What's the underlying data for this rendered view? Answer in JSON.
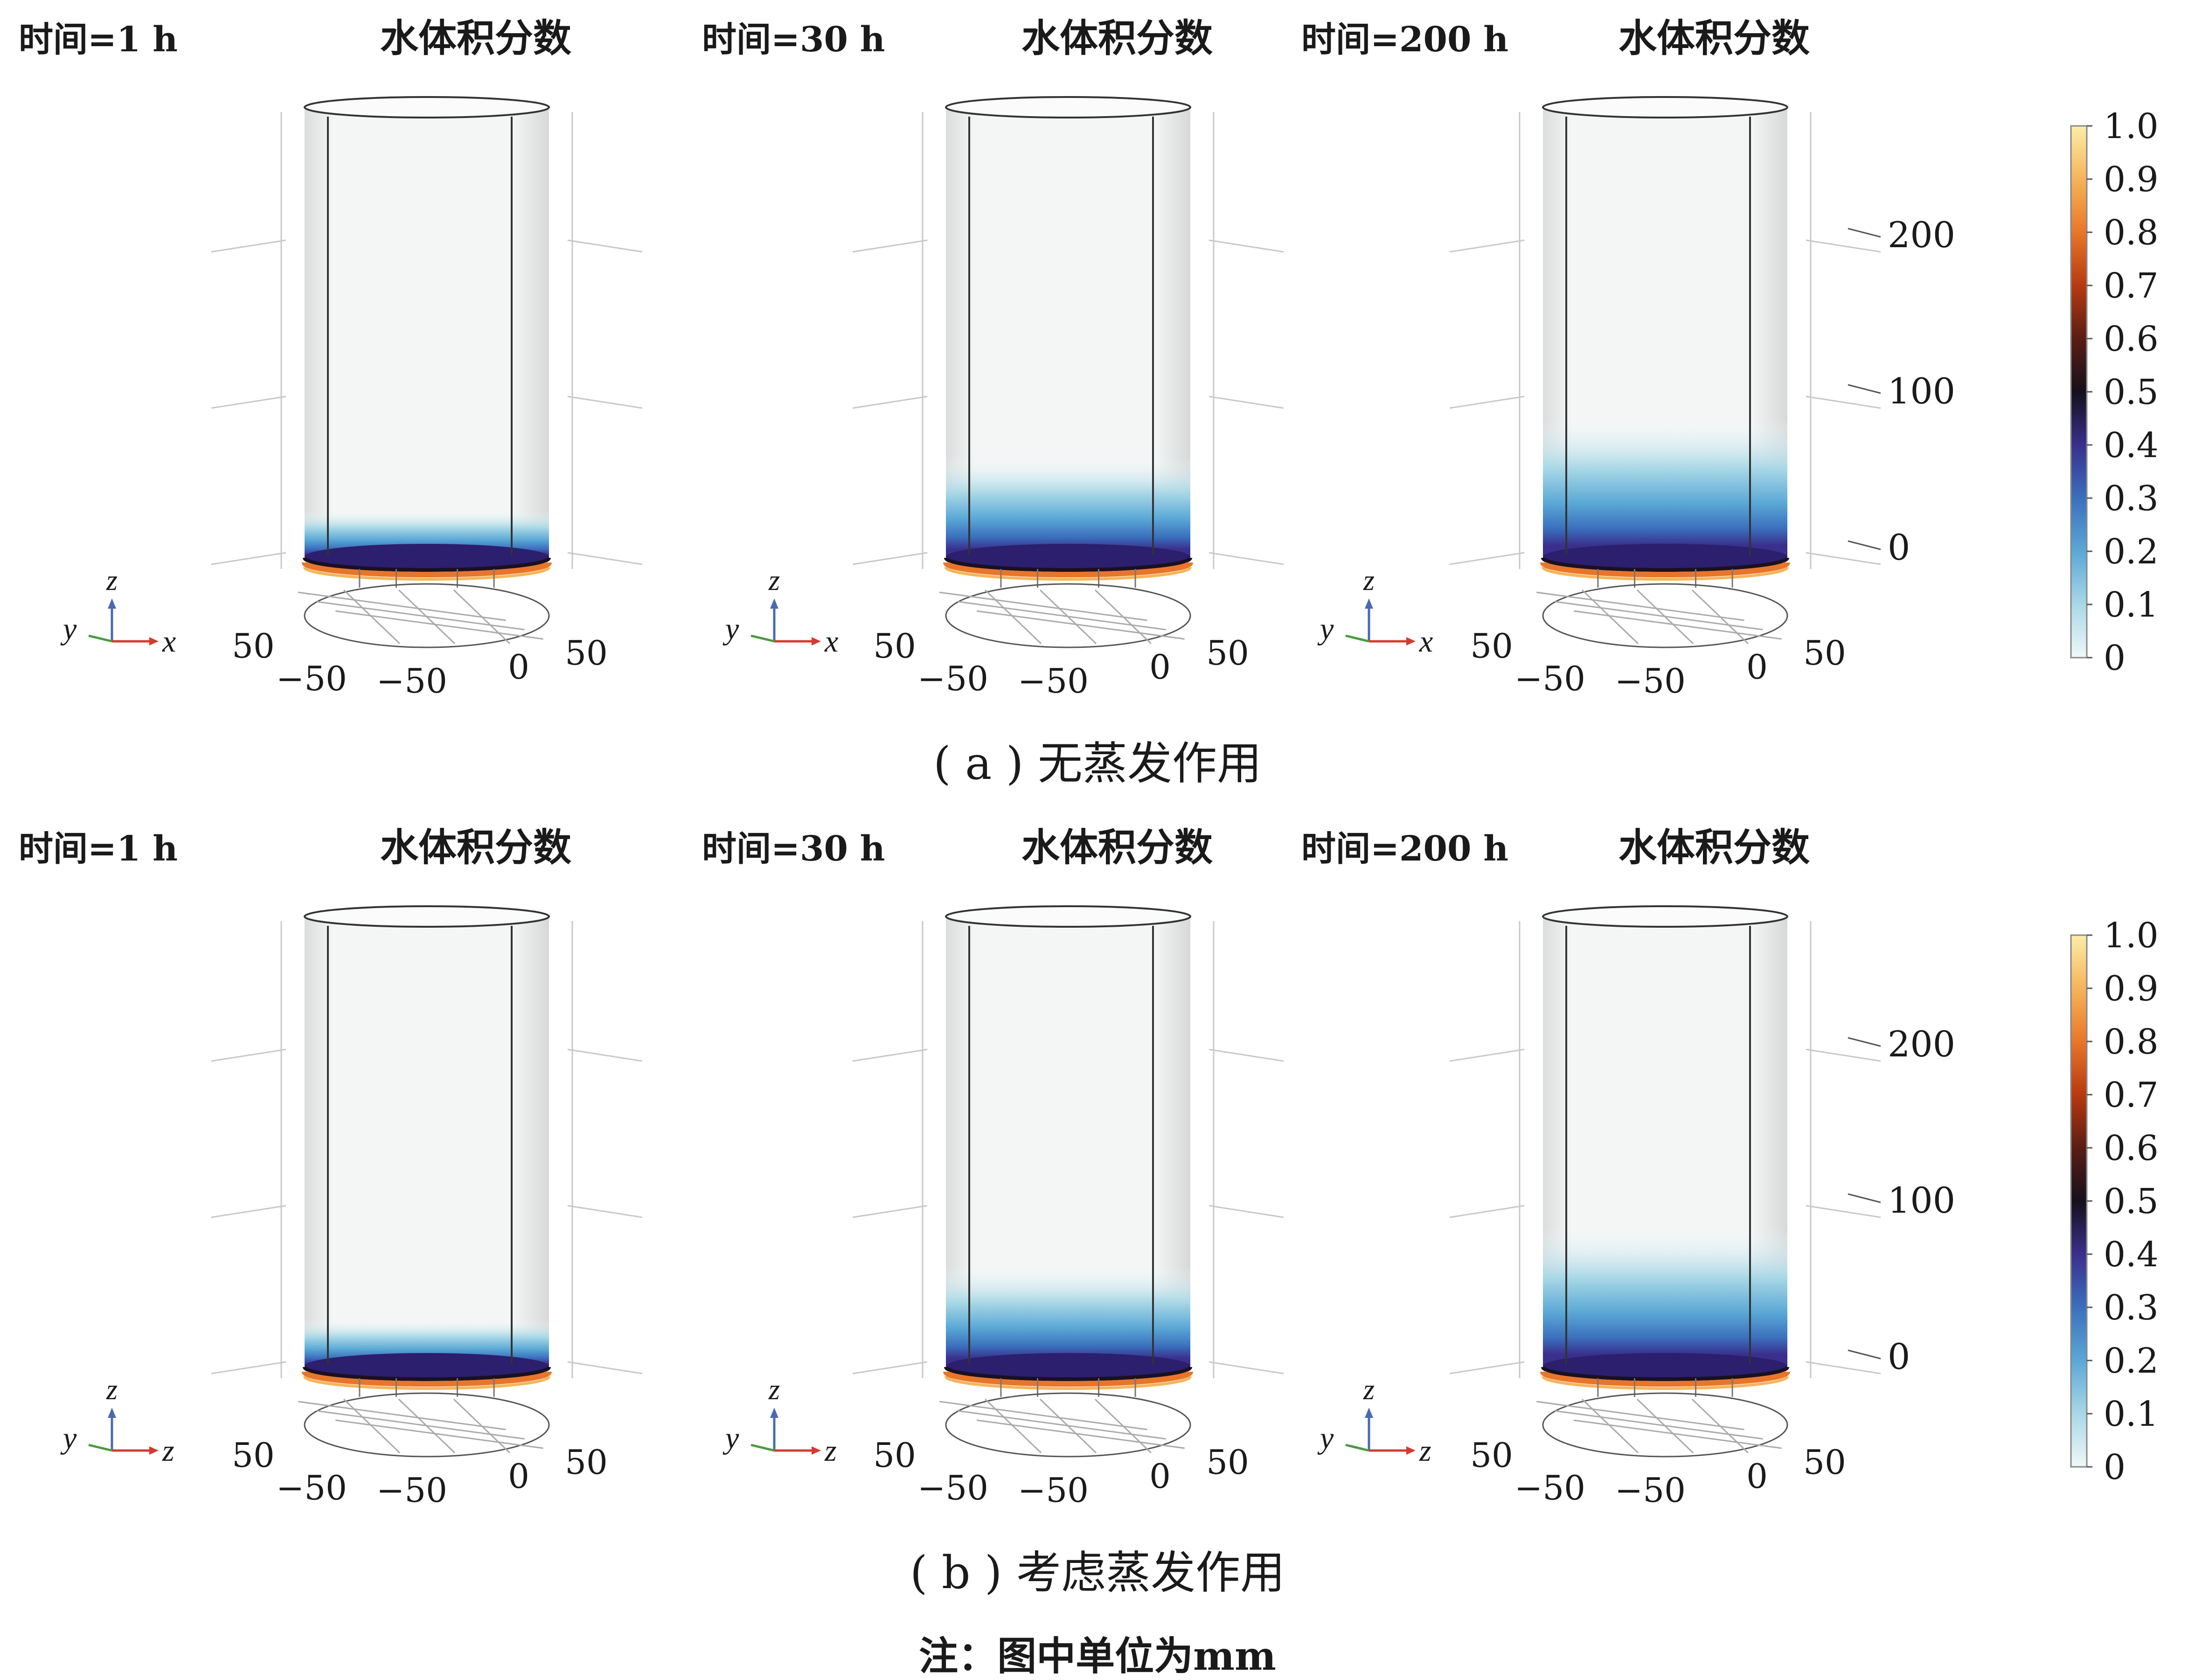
{
  "rows": [
    {
      "panel_caption": "( a ) 无蒸发作用",
      "triad": {
        "up": "z",
        "left": "y",
        "right": "x"
      },
      "panels": [
        {
          "time_label": "时间=1 h",
          "field_title": "水体积分数",
          "gradient_height_mm": 20,
          "show_z_ticks": false,
          "horizontal_ticks": [
            "50",
            "−50",
            "−50",
            "0",
            "50"
          ]
        },
        {
          "time_label": "时间=30 h",
          "field_title": "水体积分数",
          "gradient_height_mm": 55,
          "show_z_ticks": false,
          "horizontal_ticks": [
            "50",
            "−50",
            "−50",
            "0",
            "50"
          ]
        },
        {
          "time_label": "时间=200 h",
          "field_title": "水体积分数",
          "gradient_height_mm": 80,
          "show_z_ticks": true,
          "horizontal_ticks": [
            "50",
            "−50",
            "−50",
            "0",
            "50"
          ]
        }
      ]
    },
    {
      "panel_caption": "( b ) 考虑蒸发作用",
      "triad": {
        "up": "z",
        "left": "y",
        "right": "z"
      },
      "panels": [
        {
          "time_label": "时间=1 h",
          "field_title": "水体积分数",
          "gradient_height_mm": 20,
          "show_z_ticks": false,
          "horizontal_ticks": [
            "50",
            "−50",
            "−50",
            "0",
            "50"
          ]
        },
        {
          "time_label": "时间=30 h",
          "field_title": "水体积分数",
          "gradient_height_mm": 55,
          "show_z_ticks": false,
          "horizontal_ticks": [
            "50",
            "−50",
            "−50",
            "0",
            "50"
          ]
        },
        {
          "time_label": "时间=200 h",
          "field_title": "水体积分数",
          "gradient_height_mm": 80,
          "show_z_ticks": true,
          "horizontal_ticks": [
            "50",
            "−50",
            "−50",
            "0",
            "50"
          ]
        }
      ]
    }
  ],
  "z_axis_ticks": [
    {
      "value": 0,
      "label": "0"
    },
    {
      "value": 100,
      "label": "100"
    },
    {
      "value": 200,
      "label": "200"
    }
  ],
  "colorbar": {
    "tick_labels": [
      "1.0",
      "0.9",
      "0.8",
      "0.7",
      "0.6",
      "0.5",
      "0.4",
      "0.3",
      "0.2",
      "0.1",
      "0"
    ],
    "color_stops": [
      {
        "value": 0.0,
        "color": "#f0f8f8"
      },
      {
        "value": 0.1,
        "color": "#a9d8e6"
      },
      {
        "value": 0.2,
        "color": "#5aa8d6"
      },
      {
        "value": 0.3,
        "color": "#3b6fbd"
      },
      {
        "value": 0.4,
        "color": "#3a2f8c"
      },
      {
        "value": 0.5,
        "color": "#15101c"
      },
      {
        "value": 0.6,
        "color": "#5a1d14"
      },
      {
        "value": 0.7,
        "color": "#b83a10"
      },
      {
        "value": 0.8,
        "color": "#e8762a"
      },
      {
        "value": 0.9,
        "color": "#f6b45a"
      },
      {
        "value": 1.0,
        "color": "#fbeea8"
      }
    ]
  },
  "note": "注：图中单位为mm"
}
